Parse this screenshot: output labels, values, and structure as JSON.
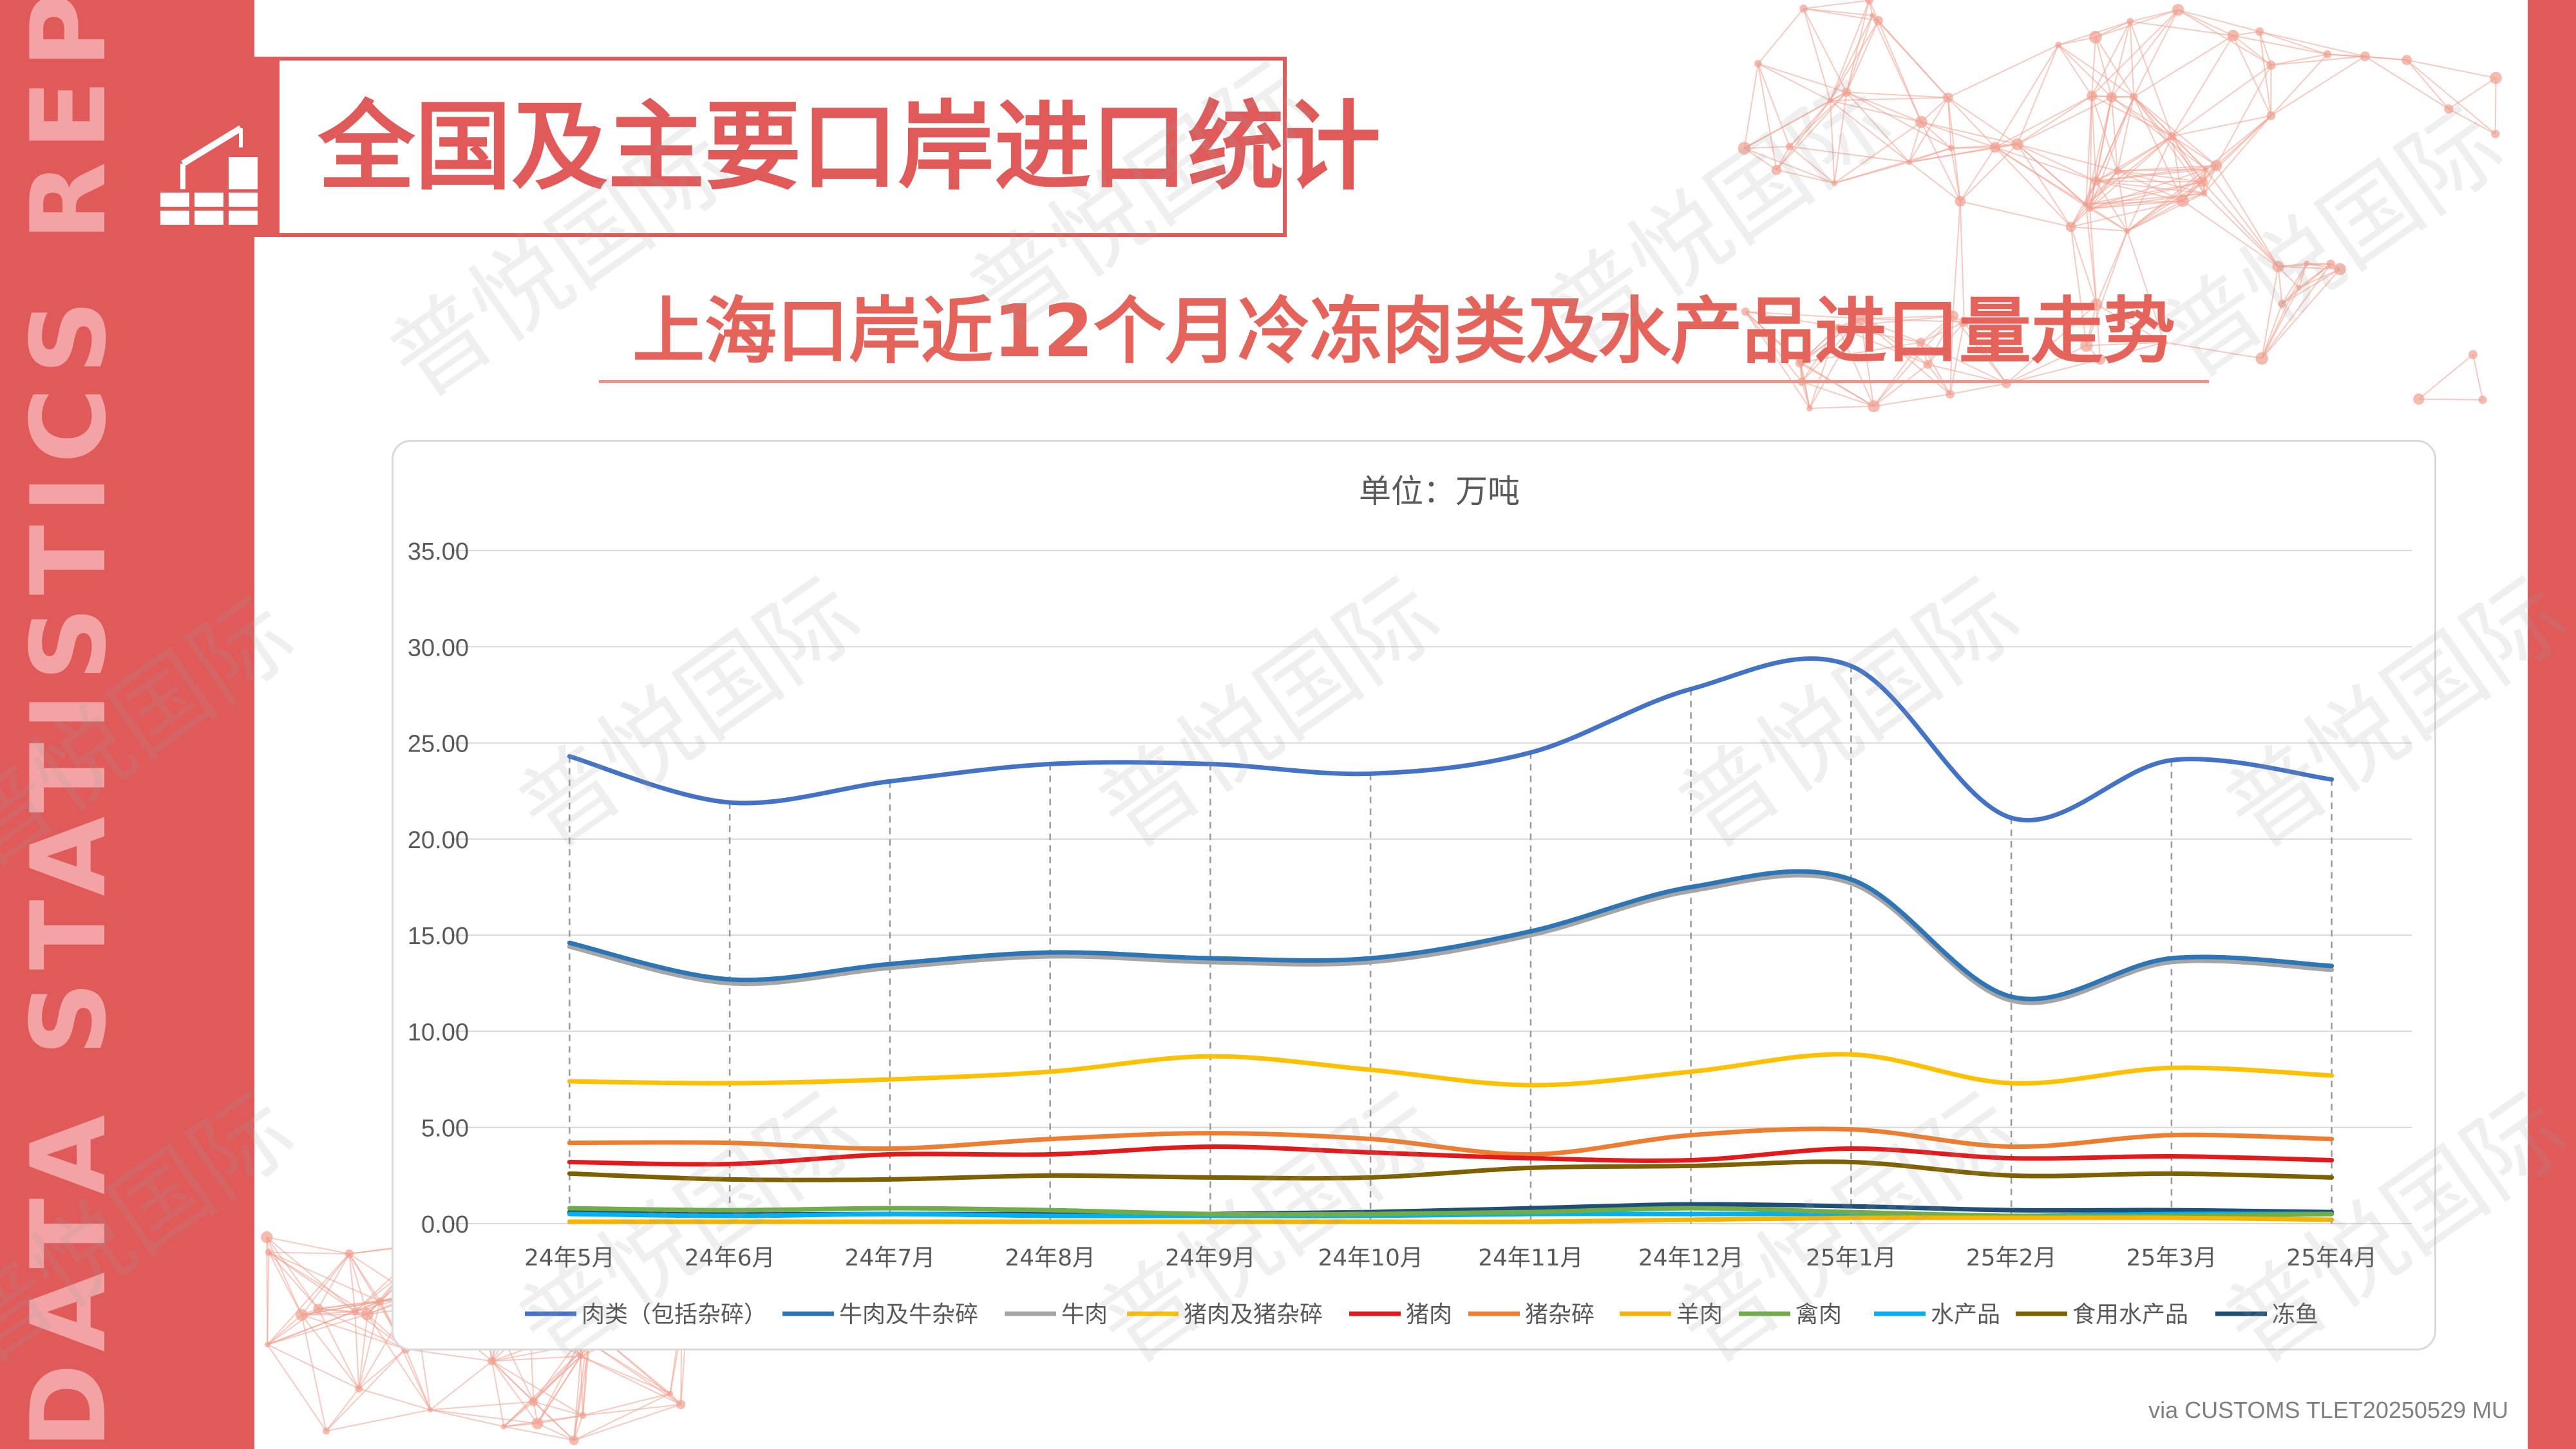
{
  "side_text": "DATA STATISTICS REPORT",
  "header": {
    "title": "全国及主要口岸进口统计"
  },
  "chart_title": "上海口岸近12个月冷冻肉类及水产品进口量走势",
  "source": "via CUSTOMS TLET20250529 MU",
  "watermark": "普悦国际",
  "colors": {
    "brand": "#e05a5a",
    "subtitle": "#e4645c"
  },
  "chart_data": {
    "type": "line",
    "subtitle": "单位：万吨",
    "categories": [
      "24年5月",
      "24年6月",
      "24年7月",
      "24年8月",
      "24年9月",
      "24年10月",
      "24年11月",
      "24年12月",
      "25年1月",
      "25年2月",
      "25年3月",
      "25年4月"
    ],
    "ylim": [
      0,
      35
    ],
    "yticks": [
      "0.00",
      "5.00",
      "10.00",
      "15.00",
      "20.00",
      "25.00",
      "30.00",
      "35.00"
    ],
    "grid": true,
    "legend": "bottom",
    "series": [
      {
        "name": "肉类（包括杂碎）",
        "color": "#4472c4",
        "values": [
          24.3,
          21.9,
          23.0,
          23.9,
          23.9,
          23.4,
          24.5,
          27.8,
          29.0,
          21.1,
          24.1,
          23.1
        ]
      },
      {
        "name": "牛肉及牛杂碎",
        "color": "#2e75b6",
        "values": [
          14.6,
          12.7,
          13.5,
          14.1,
          13.8,
          13.8,
          15.2,
          17.5,
          17.9,
          11.8,
          13.8,
          13.4
        ]
      },
      {
        "name": "牛肉",
        "color": "#a5a5a5",
        "values": [
          14.4,
          12.5,
          13.3,
          13.9,
          13.6,
          13.6,
          15.0,
          17.3,
          17.7,
          11.6,
          13.6,
          13.2
        ]
      },
      {
        "name": "猪肉及猪杂碎",
        "color": "#ffc000",
        "values": [
          7.4,
          7.3,
          7.5,
          7.9,
          8.7,
          8.0,
          7.2,
          7.9,
          8.8,
          7.3,
          8.1,
          7.7
        ]
      },
      {
        "name": "猪肉",
        "color": "#e31a1c",
        "values": [
          3.2,
          3.1,
          3.6,
          3.6,
          4.0,
          3.7,
          3.4,
          3.3,
          3.9,
          3.4,
          3.5,
          3.3
        ]
      },
      {
        "name": "猪杂碎",
        "color": "#ed7d31",
        "values": [
          4.2,
          4.2,
          3.9,
          4.4,
          4.7,
          4.4,
          3.6,
          4.6,
          4.9,
          4.0,
          4.6,
          4.4
        ]
      },
      {
        "name": "羊肉",
        "color": "#f4b400",
        "values": [
          0.1,
          0.1,
          0.1,
          0.1,
          0.1,
          0.1,
          0.1,
          0.2,
          0.3,
          0.3,
          0.3,
          0.2
        ]
      },
      {
        "name": "禽肉",
        "color": "#70ad47",
        "values": [
          0.8,
          0.7,
          0.8,
          0.7,
          0.5,
          0.5,
          0.6,
          0.8,
          0.6,
          0.4,
          0.4,
          0.5
        ]
      },
      {
        "name": "水产品",
        "color": "#00b0f0",
        "values": [
          0.5,
          0.4,
          0.5,
          0.4,
          0.4,
          0.4,
          0.5,
          0.5,
          0.5,
          0.4,
          0.5,
          0.5
        ]
      },
      {
        "name": "食用水产品",
        "color": "#7f6000",
        "values": [
          2.6,
          2.3,
          2.3,
          2.5,
          2.4,
          2.4,
          2.9,
          3.0,
          3.2,
          2.5,
          2.6,
          2.4
        ]
      },
      {
        "name": "冻鱼",
        "color": "#1f4e79",
        "values": [
          0.6,
          0.5,
          0.5,
          0.5,
          0.5,
          0.6,
          0.8,
          1.0,
          0.9,
          0.7,
          0.7,
          0.6
        ]
      }
    ]
  }
}
